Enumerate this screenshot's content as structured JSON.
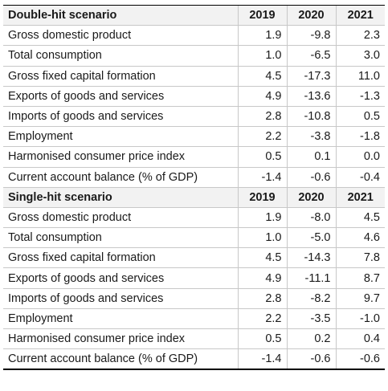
{
  "sections": [
    {
      "title": "Double-hit scenario",
      "years": [
        "2019",
        "2020",
        "2021"
      ],
      "rows": [
        {
          "label": "Gross domestic product",
          "values": [
            "1.9",
            "-9.8",
            "2.3"
          ]
        },
        {
          "label": "Total consumption",
          "values": [
            "1.0",
            "-6.5",
            "3.0"
          ]
        },
        {
          "label": "Gross fixed capital formation",
          "values": [
            "4.5",
            "-17.3",
            "11.0"
          ]
        },
        {
          "label": "Exports of goods and services",
          "values": [
            "4.9",
            "-13.6",
            "-1.3"
          ]
        },
        {
          "label": "Imports of goods and services",
          "values": [
            "2.8",
            "-10.8",
            "0.5"
          ]
        },
        {
          "label": "Employment",
          "values": [
            "2.2",
            "-3.8",
            "-1.8"
          ]
        },
        {
          "label": "Harmonised consumer price index",
          "values": [
            "0.5",
            "0.1",
            "0.0"
          ]
        },
        {
          "label": "Current account balance (% of GDP)",
          "values": [
            "-1.4",
            "-0.6",
            "-0.4"
          ]
        }
      ]
    },
    {
      "title": "Single-hit scenario",
      "years": [
        "2019",
        "2020",
        "2021"
      ],
      "rows": [
        {
          "label": "Gross domestic product",
          "values": [
            "1.9",
            "-8.0",
            "4.5"
          ]
        },
        {
          "label": "Total consumption",
          "values": [
            "1.0",
            "-5.0",
            "4.6"
          ]
        },
        {
          "label": "Gross fixed capital formation",
          "values": [
            "4.5",
            "-14.3",
            "7.8"
          ]
        },
        {
          "label": "Exports of goods and services",
          "values": [
            "4.9",
            "-11.1",
            "8.7"
          ]
        },
        {
          "label": "Imports of goods and services",
          "values": [
            "2.8",
            "-8.2",
            "9.7"
          ]
        },
        {
          "label": "Employment",
          "values": [
            "2.2",
            "-3.5",
            "-1.0"
          ]
        },
        {
          "label": "Harmonised consumer price index",
          "values": [
            "0.5",
            "0.2",
            "0.4"
          ]
        },
        {
          "label": "Current account balance (% of GDP)",
          "values": [
            "-1.4",
            "-0.6",
            "-0.6"
          ]
        }
      ]
    }
  ]
}
